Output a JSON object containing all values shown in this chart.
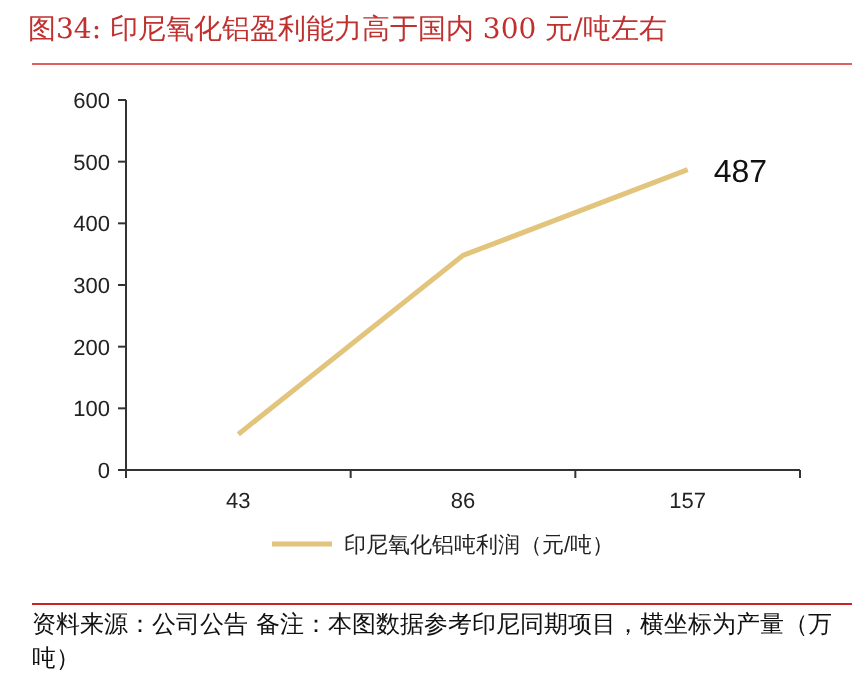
{
  "chart_data": {
    "type": "line",
    "title": "图34:  印尼氧化铝盈利能力高于国内 300 元/吨左右",
    "categories": [
      "43",
      "86",
      "157"
    ],
    "series": [
      {
        "name": "印尼氧化铝吨利润（元/吨）",
        "color": "#e2c47c",
        "values": [
          58,
          348,
          487
        ],
        "value_labels": [
          null,
          null,
          "487"
        ]
      }
    ],
    "ylim": [
      0,
      600
    ],
    "yticks": [
      0,
      100,
      200,
      300,
      400,
      500,
      600
    ],
    "grid": false,
    "legend": "bottom",
    "marker": "none",
    "line_style": "solid",
    "annotations": [
      "资料来源：公司公告 备注：本图数据参考印尼同期项目，横坐标为产量（万吨）"
    ]
  }
}
